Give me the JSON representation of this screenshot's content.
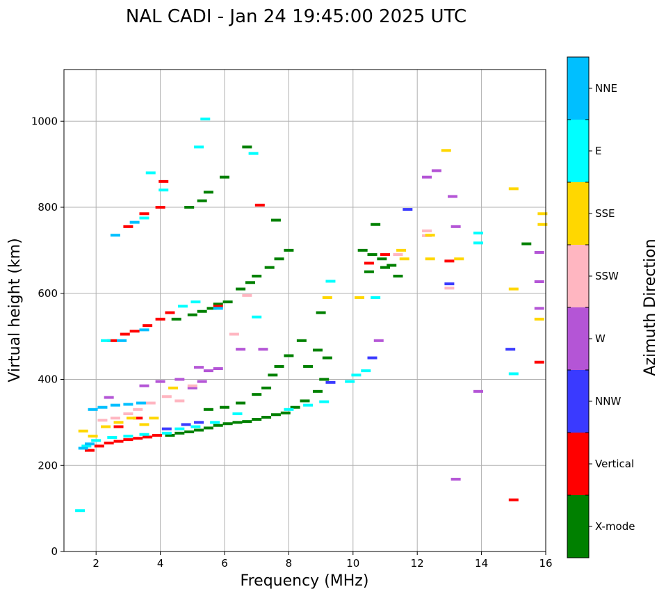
{
  "chart_data": {
    "type": "scatter",
    "title": "NAL CADI - Jan 24 19:45:00 2025 UTC",
    "xlabel": "Frequency (MHz)",
    "ylabel": "Virtual height (km)",
    "xlim": [
      1,
      16
    ],
    "ylim": [
      0,
      1120
    ],
    "xticks": [
      2,
      4,
      6,
      8,
      10,
      12,
      14,
      16
    ],
    "yticks": [
      0,
      200,
      400,
      600,
      800,
      1000
    ],
    "grid": true,
    "colorbar": {
      "label": "Azimuth Direction",
      "position": "right",
      "categories": [
        {
          "name": "X-mode",
          "color": "#008000"
        },
        {
          "name": "Vertical",
          "color": "#ff0000"
        },
        {
          "name": "NNW",
          "color": "#3a3aff"
        },
        {
          "name": "W",
          "color": "#b455d6"
        },
        {
          "name": "SSW",
          "color": "#ffb6c1"
        },
        {
          "name": "SSE",
          "color": "#ffd700"
        },
        {
          "name": "E",
          "color": "#00ffff"
        },
        {
          "name": "NNE",
          "color": "#00bfff"
        }
      ]
    },
    "series": [
      {
        "name": "X-mode",
        "points": [
          [
            4.3,
            270
          ],
          [
            4.6,
            275
          ],
          [
            4.9,
            278
          ],
          [
            5.2,
            282
          ],
          [
            5.5,
            287
          ],
          [
            5.8,
            293
          ],
          [
            6.1,
            297
          ],
          [
            6.4,
            300
          ],
          [
            6.7,
            302
          ],
          [
            7.0,
            307
          ],
          [
            7.3,
            312
          ],
          [
            7.6,
            318
          ],
          [
            7.9,
            322
          ],
          [
            8.2,
            335
          ],
          [
            8.5,
            350
          ],
          [
            8.9,
            372
          ],
          [
            9.1,
            400
          ],
          [
            9.2,
            450
          ],
          [
            8.6,
            430
          ],
          [
            8.9,
            468
          ],
          [
            5.5,
            330
          ],
          [
            6.0,
            335
          ],
          [
            6.5,
            345
          ],
          [
            7.0,
            365
          ],
          [
            7.3,
            380
          ],
          [
            7.5,
            410
          ],
          [
            7.7,
            430
          ],
          [
            8.0,
            455
          ],
          [
            8.4,
            490
          ],
          [
            4.5,
            540
          ],
          [
            5.0,
            550
          ],
          [
            5.3,
            558
          ],
          [
            5.6,
            565
          ],
          [
            5.8,
            575
          ],
          [
            6.1,
            580
          ],
          [
            6.5,
            610
          ],
          [
            6.8,
            625
          ],
          [
            7.0,
            640
          ],
          [
            7.4,
            660
          ],
          [
            7.7,
            680
          ],
          [
            8.0,
            700
          ],
          [
            7.6,
            770
          ],
          [
            6.7,
            940
          ],
          [
            4.9,
            800
          ],
          [
            5.3,
            815
          ],
          [
            5.5,
            835
          ],
          [
            6.0,
            870
          ],
          [
            10.3,
            700
          ],
          [
            10.6,
            690
          ],
          [
            10.9,
            680
          ],
          [
            11.2,
            665
          ],
          [
            11.4,
            640
          ],
          [
            10.5,
            650
          ],
          [
            10.7,
            760
          ],
          [
            11.0,
            660
          ],
          [
            15.4,
            715
          ],
          [
            9.0,
            555
          ]
        ]
      },
      {
        "name": "Vertical",
        "points": [
          [
            1.8,
            235
          ],
          [
            2.1,
            245
          ],
          [
            2.4,
            252
          ],
          [
            2.7,
            256
          ],
          [
            3.0,
            260
          ],
          [
            3.3,
            263
          ],
          [
            3.6,
            266
          ],
          [
            3.9,
            270
          ],
          [
            2.5,
            490
          ],
          [
            2.9,
            505
          ],
          [
            3.2,
            512
          ],
          [
            3.6,
            525
          ],
          [
            4.0,
            540
          ],
          [
            4.3,
            555
          ],
          [
            3.0,
            755
          ],
          [
            3.5,
            785
          ],
          [
            4.0,
            800
          ],
          [
            7.1,
            805
          ],
          [
            10.5,
            670
          ],
          [
            11.0,
            690
          ],
          [
            13.0,
            675
          ],
          [
            15.0,
            120
          ],
          [
            15.8,
            440
          ],
          [
            5.8,
            570
          ],
          [
            4.1,
            860
          ],
          [
            2.7,
            290
          ],
          [
            3.3,
            310
          ]
        ]
      },
      {
        "name": "NNW",
        "points": [
          [
            4.2,
            285
          ],
          [
            4.8,
            295
          ],
          [
            5.2,
            300
          ],
          [
            10.6,
            450
          ],
          [
            11.7,
            795
          ],
          [
            14.9,
            470
          ],
          [
            13.0,
            622
          ],
          [
            9.3,
            393
          ]
        ]
      },
      {
        "name": "W",
        "points": [
          [
            3.5,
            385
          ],
          [
            4.0,
            395
          ],
          [
            4.6,
            400
          ],
          [
            5.0,
            380
          ],
          [
            5.3,
            395
          ],
          [
            5.5,
            420
          ],
          [
            5.8,
            425
          ],
          [
            6.5,
            470
          ],
          [
            7.2,
            470
          ],
          [
            12.3,
            870
          ],
          [
            12.6,
            885
          ],
          [
            13.1,
            825
          ],
          [
            13.2,
            755
          ],
          [
            13.2,
            168
          ],
          [
            13.9,
            372
          ],
          [
            15.8,
            627
          ],
          [
            15.8,
            565
          ],
          [
            15.8,
            695
          ],
          [
            10.8,
            490
          ],
          [
            2.4,
            358
          ],
          [
            5.2,
            428
          ]
        ]
      },
      {
        "name": "SSW",
        "points": [
          [
            2.2,
            305
          ],
          [
            2.6,
            310
          ],
          [
            3.0,
            320
          ],
          [
            3.3,
            330
          ],
          [
            3.7,
            345
          ],
          [
            4.2,
            360
          ],
          [
            4.6,
            350
          ],
          [
            5.0,
            385
          ],
          [
            6.3,
            505
          ],
          [
            6.7,
            595
          ],
          [
            11.4,
            690
          ],
          [
            12.3,
            745
          ],
          [
            12.3,
            734
          ],
          [
            13.0,
            612
          ]
        ]
      },
      {
        "name": "SSE",
        "points": [
          [
            1.6,
            280
          ],
          [
            1.9,
            268
          ],
          [
            2.3,
            290
          ],
          [
            2.7,
            300
          ],
          [
            3.1,
            310
          ],
          [
            3.5,
            295
          ],
          [
            3.8,
            310
          ],
          [
            4.4,
            380
          ],
          [
            9.2,
            590
          ],
          [
            10.2,
            590
          ],
          [
            11.5,
            700
          ],
          [
            11.6,
            680
          ],
          [
            12.4,
            735
          ],
          [
            12.4,
            680
          ],
          [
            12.9,
            932
          ],
          [
            13.3,
            680
          ],
          [
            15.0,
            843
          ],
          [
            15.0,
            610
          ],
          [
            15.9,
            785
          ],
          [
            15.9,
            760
          ],
          [
            15.8,
            540
          ]
        ]
      },
      {
        "name": "E",
        "points": [
          [
            1.7,
            245
          ],
          [
            2.0,
            258
          ],
          [
            2.5,
            265
          ],
          [
            3.0,
            268
          ],
          [
            3.5,
            272
          ],
          [
            4.2,
            275
          ],
          [
            4.6,
            285
          ],
          [
            5.1,
            290
          ],
          [
            5.7,
            300
          ],
          [
            6.4,
            320
          ],
          [
            8.0,
            330
          ],
          [
            8.6,
            340
          ],
          [
            9.1,
            348
          ],
          [
            9.9,
            395
          ],
          [
            10.1,
            410
          ],
          [
            10.4,
            420
          ],
          [
            4.7,
            570
          ],
          [
            5.1,
            580
          ],
          [
            3.5,
            775
          ],
          [
            3.7,
            880
          ],
          [
            4.1,
            840
          ],
          [
            5.2,
            940
          ],
          [
            5.4,
            1005
          ],
          [
            6.9,
            925
          ],
          [
            9.3,
            628
          ],
          [
            10.7,
            590
          ],
          [
            13.9,
            740
          ],
          [
            13.9,
            717
          ],
          [
            15.0,
            413
          ],
          [
            1.5,
            95
          ],
          [
            2.3,
            490
          ],
          [
            7.0,
            545
          ]
        ]
      },
      {
        "name": "NNE",
        "points": [
          [
            1.6,
            240
          ],
          [
            1.9,
            330
          ],
          [
            2.2,
            335
          ],
          [
            2.6,
            340
          ],
          [
            3.0,
            342
          ],
          [
            3.4,
            345
          ],
          [
            1.8,
            250
          ],
          [
            2.8,
            490
          ],
          [
            3.5,
            515
          ],
          [
            3.2,
            765
          ],
          [
            2.6,
            735
          ],
          [
            5.8,
            565
          ]
        ]
      }
    ]
  }
}
